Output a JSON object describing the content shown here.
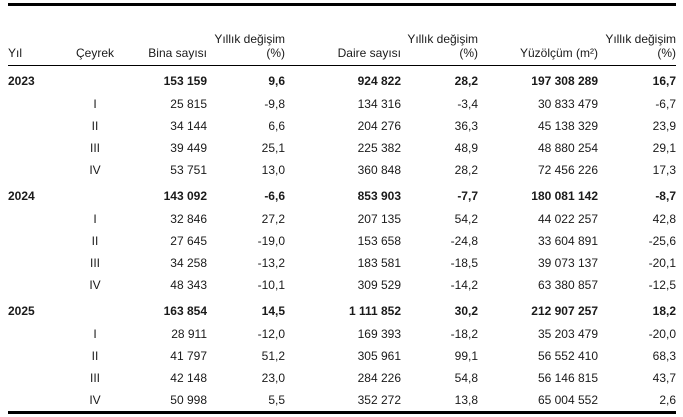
{
  "chart_data": {
    "type": "table",
    "columns": [
      "Yıl",
      "Çeyrek",
      "Bina sayısı",
      "Yıllık değişim (%)",
      "Daire sayısı",
      "Yıllık değişim (%)",
      "Yüzölçüm (m²)",
      "Yıllık değişim (%)"
    ],
    "rows": [
      {
        "type": "year",
        "cells": [
          "2023",
          "",
          "153 159",
          "9,6",
          "924 822",
          "28,2",
          "197 308 289",
          "16,7"
        ]
      },
      {
        "type": "quarter",
        "cells": [
          "",
          "I",
          "25 815",
          "-9,8",
          "134 316",
          "-3,4",
          "30 833 479",
          "-6,7"
        ]
      },
      {
        "type": "quarter",
        "cells": [
          "",
          "II",
          "34 144",
          "6,6",
          "204 276",
          "36,3",
          "45 138 329",
          "23,9"
        ]
      },
      {
        "type": "quarter",
        "cells": [
          "",
          "III",
          "39 449",
          "25,1",
          "225 382",
          "48,9",
          "48 880 254",
          "29,1"
        ]
      },
      {
        "type": "quarter",
        "cells": [
          "",
          "IV",
          "53 751",
          "13,0",
          "360 848",
          "28,2",
          "72 456 226",
          "17,3"
        ]
      },
      {
        "type": "year",
        "cells": [
          "2024",
          "",
          "143 092",
          "-6,6",
          "853 903",
          "-7,7",
          "180 081 142",
          "-8,7"
        ]
      },
      {
        "type": "quarter",
        "cells": [
          "",
          "I",
          "32 846",
          "27,2",
          "207 135",
          "54,2",
          "44 022 257",
          "42,8"
        ]
      },
      {
        "type": "quarter",
        "cells": [
          "",
          "II",
          "27 645",
          "-19,0",
          "153 658",
          "-24,8",
          "33 604 891",
          "-25,6"
        ]
      },
      {
        "type": "quarter",
        "cells": [
          "",
          "III",
          "34 258",
          "-13,2",
          "183 581",
          "-18,5",
          "39 073 137",
          "-20,1"
        ]
      },
      {
        "type": "quarter",
        "cells": [
          "",
          "IV",
          "48 343",
          "-10,1",
          "309 529",
          "-14,2",
          "63 380 857",
          "-12,5"
        ]
      },
      {
        "type": "year",
        "cells": [
          "2025",
          "",
          "163 854",
          "14,5",
          "1 111 852",
          "30,2",
          "212 907 257",
          "18,2"
        ]
      },
      {
        "type": "quarter",
        "cells": [
          "",
          "I",
          "28 911",
          "-12,0",
          "169 393",
          "-18,2",
          "35 203 479",
          "-20,0"
        ]
      },
      {
        "type": "quarter",
        "cells": [
          "",
          "II",
          "41 797",
          "51,2",
          "305 961",
          "99,1",
          "56 552 410",
          "68,3"
        ]
      },
      {
        "type": "quarter",
        "cells": [
          "",
          "III",
          "42 148",
          "23,0",
          "284 226",
          "54,8",
          "56 146 815",
          "43,7"
        ]
      },
      {
        "type": "quarter",
        "cells": [
          "",
          "IV",
          "50 998",
          "5,5",
          "352 272",
          "13,8",
          "65 004 552",
          "2,6"
        ]
      }
    ],
    "layout": {
      "grid": "off",
      "top_border": "thick",
      "bottom_border": "thick",
      "header_separator": "thin",
      "text_color": "#1a1a1a",
      "rule_color": "#000000",
      "background_color": "#ffffff"
    }
  }
}
